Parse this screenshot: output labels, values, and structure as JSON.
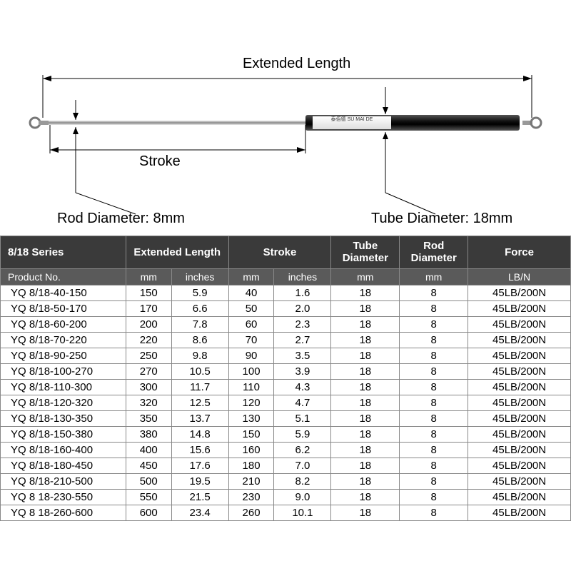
{
  "diagram": {
    "extended_length_label": "Extended Length",
    "stroke_label": "Stroke",
    "rod_diameter_label": "Rod Diameter: 8mm",
    "tube_diameter_label": "Tube Diameter: 18mm",
    "brand_text": "泰佰德  SU MAI DE"
  },
  "table": {
    "series_header": "8/18 Series",
    "columns": {
      "extended_length": "Extended Length",
      "stroke": "Stroke",
      "tube_diameter": "Tube\nDiameter",
      "rod_diameter": "Rod\nDiameter",
      "force": "Force"
    },
    "subheaders": {
      "product_no": "Product No.",
      "mm": "mm",
      "inches": "inches",
      "lbn": "LB/N"
    },
    "rows": [
      {
        "product": "YQ 8/18-40-150",
        "ext_mm": "150",
        "ext_in": "5.9",
        "stroke_mm": "40",
        "stroke_in": "1.6",
        "tube": "18",
        "rod": "8",
        "force": "45LB/200N"
      },
      {
        "product": "YQ 8/18-50-170",
        "ext_mm": "170",
        "ext_in": "6.6",
        "stroke_mm": "50",
        "stroke_in": "2.0",
        "tube": "18",
        "rod": "8",
        "force": "45LB/200N"
      },
      {
        "product": "YQ 8/18-60-200",
        "ext_mm": "200",
        "ext_in": "7.8",
        "stroke_mm": "60",
        "stroke_in": "2.3",
        "tube": "18",
        "rod": "8",
        "force": "45LB/200N"
      },
      {
        "product": "YQ 8/18-70-220",
        "ext_mm": "220",
        "ext_in": "8.6",
        "stroke_mm": "70",
        "stroke_in": "2.7",
        "tube": "18",
        "rod": "8",
        "force": "45LB/200N"
      },
      {
        "product": "YQ 8/18-90-250",
        "ext_mm": "250",
        "ext_in": "9.8",
        "stroke_mm": "90",
        "stroke_in": "3.5",
        "tube": "18",
        "rod": "8",
        "force": "45LB/200N"
      },
      {
        "product": "YQ 8/18-100-270",
        "ext_mm": "270",
        "ext_in": "10.5",
        "stroke_mm": "100",
        "stroke_in": "3.9",
        "tube": "18",
        "rod": "8",
        "force": "45LB/200N"
      },
      {
        "product": "YQ 8/18-110-300",
        "ext_mm": "300",
        "ext_in": "11.7",
        "stroke_mm": "110",
        "stroke_in": "4.3",
        "tube": "18",
        "rod": "8",
        "force": "45LB/200N"
      },
      {
        "product": "YQ 8/18-120-320",
        "ext_mm": "320",
        "ext_in": "12.5",
        "stroke_mm": "120",
        "stroke_in": "4.7",
        "tube": "18",
        "rod": "8",
        "force": "45LB/200N"
      },
      {
        "product": "YQ 8/18-130-350",
        "ext_mm": "350",
        "ext_in": "13.7",
        "stroke_mm": "130",
        "stroke_in": "5.1",
        "tube": "18",
        "rod": "8",
        "force": "45LB/200N"
      },
      {
        "product": "YQ 8/18-150-380",
        "ext_mm": "380",
        "ext_in": "14.8",
        "stroke_mm": "150",
        "stroke_in": "5.9",
        "tube": "18",
        "rod": "8",
        "force": "45LB/200N"
      },
      {
        "product": "YQ 8/18-160-400",
        "ext_mm": "400",
        "ext_in": "15.6",
        "stroke_mm": "160",
        "stroke_in": "6.2",
        "tube": "18",
        "rod": "8",
        "force": "45LB/200N"
      },
      {
        "product": "YQ 8/18-180-450",
        "ext_mm": "450",
        "ext_in": "17.6",
        "stroke_mm": "180",
        "stroke_in": "7.0",
        "tube": "18",
        "rod": "8",
        "force": "45LB/200N"
      },
      {
        "product": "YQ 8/18-210-500",
        "ext_mm": "500",
        "ext_in": "19.5",
        "stroke_mm": "210",
        "stroke_in": "8.2",
        "tube": "18",
        "rod": "8",
        "force": "45LB/200N"
      },
      {
        "product": "YQ 8 18-230-550",
        "ext_mm": "550",
        "ext_in": "21.5",
        "stroke_mm": "230",
        "stroke_in": "9.0",
        "tube": "18",
        "rod": "8",
        "force": "45LB/200N"
      },
      {
        "product": "YQ 8 18-260-600",
        "ext_mm": "600",
        "ext_in": "23.4",
        "stroke_mm": "260",
        "stroke_in": "10.1",
        "tube": "18",
        "rod": "8",
        "force": "45LB/200N"
      }
    ],
    "col_widths": {
      "product": "22%",
      "ext_mm": "8%",
      "ext_in": "10%",
      "stroke_mm": "8%",
      "stroke_in": "10%",
      "tube": "12%",
      "rod": "12%",
      "force": "18%"
    }
  },
  "colors": {
    "header_bg": "#3a3a3a",
    "subheader_bg": "#5a5a5a",
    "border": "#888888",
    "text": "#000000",
    "header_text": "#ffffff"
  }
}
